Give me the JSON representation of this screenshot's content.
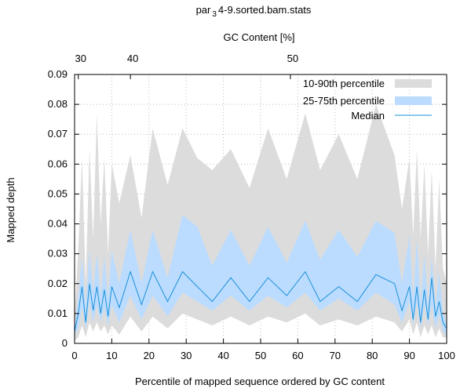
{
  "title_parts": [
    "par",
    "3",
    "4-9.sorted.bam.stats"
  ],
  "chart_data": {
    "type": "area",
    "title": "par 3 4-9.sorted.bam.stats",
    "xlabel": "Percentile of mapped sequence ordered by GC content",
    "ylabel": "Mapped depth",
    "x2label": "GC Content [%]",
    "xlim": [
      0,
      100
    ],
    "ylim": [
      0,
      0.09
    ],
    "xticks": [
      "0",
      "10",
      "20",
      "30",
      "40",
      "50",
      "60",
      "70",
      "80",
      "90",
      "100"
    ],
    "yticks": [
      "0",
      "0.01",
      "0.02",
      "0.03",
      "0.04",
      "0.05",
      "0.06",
      "0.07",
      "0.08",
      "0.09"
    ],
    "x2ticks": [
      {
        "label": "30",
        "pos": 1
      },
      {
        "label": "40",
        "pos": 15
      },
      {
        "label": "50",
        "pos": 58
      }
    ],
    "grid": true,
    "legend_position": "top-right",
    "legend": [
      "10-90th percentile",
      "25-75th percentile",
      "Median"
    ],
    "colors": {
      "p10_90": "#dcdcdc",
      "p25_75": "#bbdcff",
      "median": "#1a90d8"
    },
    "x": [
      0,
      1,
      2,
      3,
      4,
      5,
      6,
      7,
      8,
      9,
      10,
      12,
      15,
      18,
      21,
      25,
      29,
      33,
      37,
      42,
      47,
      52,
      57,
      62,
      66,
      71,
      76,
      81,
      86,
      88,
      90,
      91,
      92,
      93,
      94,
      95,
      96,
      97,
      98,
      99,
      100
    ],
    "p10": [
      0.001,
      0.002,
      0.006,
      0.002,
      0.007,
      0.004,
      0.007,
      0.004,
      0.006,
      0.003,
      0.006,
      0.003,
      0.009,
      0.004,
      0.009,
      0.005,
      0.01,
      0.008,
      0.006,
      0.009,
      0.006,
      0.009,
      0.007,
      0.01,
      0.006,
      0.008,
      0.006,
      0.009,
      0.007,
      0.004,
      0.008,
      0.003,
      0.007,
      0.002,
      0.006,
      0.003,
      0.006,
      0.002,
      0.005,
      0.002,
      0.002
    ],
    "p25": [
      0.003,
      0.005,
      0.012,
      0.005,
      0.014,
      0.007,
      0.013,
      0.007,
      0.012,
      0.006,
      0.013,
      0.007,
      0.016,
      0.008,
      0.016,
      0.009,
      0.017,
      0.014,
      0.011,
      0.016,
      0.011,
      0.016,
      0.012,
      0.017,
      0.011,
      0.015,
      0.011,
      0.017,
      0.013,
      0.007,
      0.014,
      0.006,
      0.014,
      0.005,
      0.013,
      0.006,
      0.013,
      0.005,
      0.01,
      0.004,
      0.003
    ],
    "med": [
      0.004,
      0.01,
      0.019,
      0.007,
      0.02,
      0.011,
      0.019,
      0.01,
      0.018,
      0.009,
      0.019,
      0.012,
      0.024,
      0.013,
      0.024,
      0.014,
      0.024,
      0.019,
      0.014,
      0.022,
      0.014,
      0.022,
      0.016,
      0.024,
      0.014,
      0.019,
      0.014,
      0.023,
      0.02,
      0.011,
      0.019,
      0.008,
      0.019,
      0.007,
      0.018,
      0.008,
      0.022,
      0.009,
      0.014,
      0.007,
      0.005
    ],
    "p75": [
      0.005,
      0.015,
      0.029,
      0.012,
      0.031,
      0.017,
      0.03,
      0.016,
      0.029,
      0.015,
      0.031,
      0.02,
      0.038,
      0.02,
      0.038,
      0.022,
      0.043,
      0.039,
      0.026,
      0.038,
      0.026,
      0.039,
      0.027,
      0.041,
      0.028,
      0.038,
      0.029,
      0.041,
      0.037,
      0.02,
      0.036,
      0.014,
      0.035,
      0.013,
      0.03,
      0.012,
      0.029,
      0.012,
      0.024,
      0.01,
      0.007
    ],
    "p90": [
      0.008,
      0.032,
      0.062,
      0.02,
      0.065,
      0.035,
      0.077,
      0.04,
      0.062,
      0.03,
      0.06,
      0.047,
      0.063,
      0.042,
      0.072,
      0.053,
      0.072,
      0.062,
      0.058,
      0.065,
      0.052,
      0.072,
      0.055,
      0.077,
      0.058,
      0.07,
      0.055,
      0.08,
      0.063,
      0.045,
      0.062,
      0.036,
      0.065,
      0.035,
      0.06,
      0.03,
      0.058,
      0.025,
      0.055,
      0.025,
      0.02
    ]
  }
}
